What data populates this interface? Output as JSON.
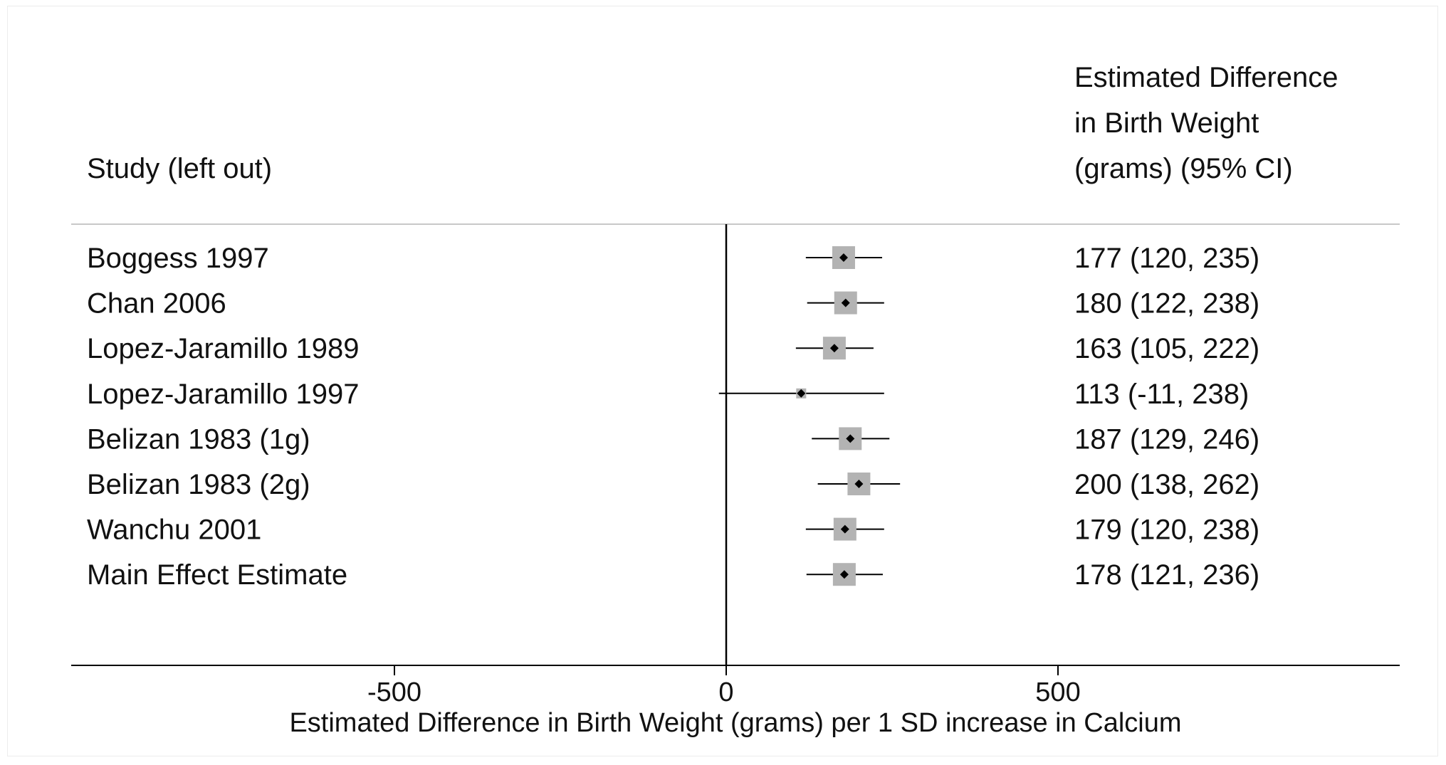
{
  "chart_data": {
    "type": "forest",
    "columns": {
      "study_header": "Study (left out)",
      "estimate_header_lines": [
        "Estimated Difference",
        "in Birth Weight",
        "(grams) (95% CI)"
      ]
    },
    "rows": [
      {
        "study": "Boggess 1997",
        "estimate": 177,
        "ci_low": 120,
        "ci_high": 235,
        "label": "177 (120, 235)"
      },
      {
        "study": "Chan 2006",
        "estimate": 180,
        "ci_low": 122,
        "ci_high": 238,
        "label": "180 (122, 238)"
      },
      {
        "study": "Lopez-Jaramillo 1989",
        "estimate": 163,
        "ci_low": 105,
        "ci_high": 222,
        "label": "163 (105, 222)"
      },
      {
        "study": "Lopez-Jaramillo 1997",
        "estimate": 113,
        "ci_low": -11,
        "ci_high": 238,
        "label": "113 (-11, 238)"
      },
      {
        "study": "Belizan 1983 (1g)",
        "estimate": 187,
        "ci_low": 129,
        "ci_high": 246,
        "label": "187 (129, 246)"
      },
      {
        "study": "Belizan 1983 (2g)",
        "estimate": 200,
        "ci_low": 138,
        "ci_high": 262,
        "label": "200 (138, 262)"
      },
      {
        "study": "Wanchu 2001",
        "estimate": 179,
        "ci_low": 120,
        "ci_high": 238,
        "label": "179 (120, 238)"
      },
      {
        "study": "Main Effect Estimate",
        "estimate": 178,
        "ci_low": 121,
        "ci_high": 236,
        "label": "178 (121, 236)"
      }
    ],
    "xaxis": {
      "label": "Estimated Difference in Birth Weight (grams) per 1 SD increase in Calcium",
      "ticks": [
        -500,
        0,
        500
      ],
      "tick_labels": [
        "-500",
        "0",
        "500"
      ],
      "range": [
        -1000,
        1000
      ]
    },
    "reference_line": 0,
    "colors": {
      "box": "#b3b3b3",
      "line": "#000000",
      "text": "#111111",
      "separator": "#c8c8c8"
    }
  }
}
